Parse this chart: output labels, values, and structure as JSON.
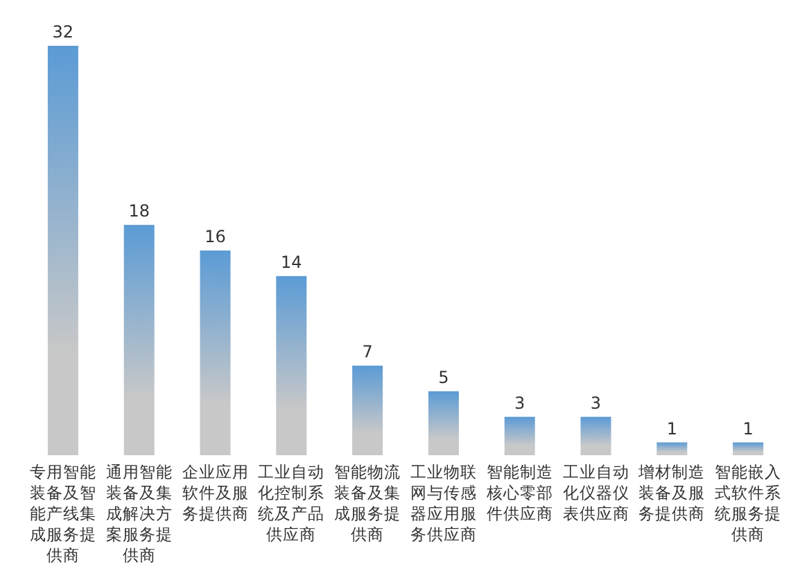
{
  "chart_data": {
    "type": "bar",
    "categories": [
      "专用智能装备及智能产线集成服务提供商",
      "通用智能装备及集成解决方案服务提供商",
      "企业应用软件及服务提供商",
      "工业自动化控制系统及产品供应商",
      "智能物流装备及集成服务提供商",
      "工业物联网与传感器应用服务供应商",
      "智能制造核心零部件供应商",
      "工业自动化仪器仪表供应商",
      "增材制造装备及服务提供商",
      "智能嵌入式软件系统服务提供商"
    ],
    "values": [
      32,
      18,
      16,
      14,
      7,
      5,
      3,
      3,
      1,
      1
    ],
    "color": "#5b9bd5",
    "data_labels": true
  }
}
